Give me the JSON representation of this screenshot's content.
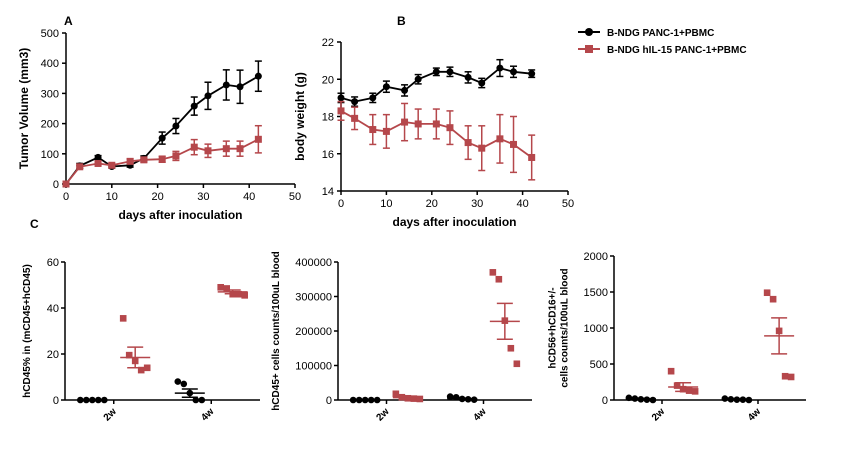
{
  "panels": {
    "a": "A",
    "b": "B",
    "c": "C"
  },
  "legend": {
    "items": [
      {
        "label": "B-NDG PANC-1+PBMC",
        "color": "#000000",
        "marker": "circle"
      },
      {
        "label": "B-NDG hIL-15 PANC-1+PBMC",
        "color": "#b5474b",
        "marker": "square"
      }
    ]
  },
  "chart_data": [
    {
      "id": "A",
      "type": "line",
      "xlabel": "days after inoculation",
      "ylabel": "Tumor Volume (mm3)",
      "xlim": [
        0,
        50
      ],
      "ylim": [
        0,
        500
      ],
      "xticks": [
        0,
        10,
        20,
        30,
        40,
        50
      ],
      "yticks": [
        0,
        100,
        200,
        300,
        400,
        500
      ],
      "x": [
        0,
        3,
        7,
        10,
        14,
        17,
        21,
        24,
        28,
        31,
        35,
        38,
        42
      ],
      "series": [
        {
          "name": "B-NDG PANC-1+PBMC",
          "color": "#000000",
          "marker": "circle",
          "values": [
            0,
            60,
            88,
            58,
            62,
            85,
            152,
            192,
            258,
            292,
            328,
            322,
            357
          ],
          "errors": [
            0,
            8,
            6,
            5,
            6,
            8,
            20,
            25,
            30,
            45,
            50,
            55,
            50
          ]
        },
        {
          "name": "B-NDG hIL-15 PANC-1+PBMC",
          "color": "#b5474b",
          "marker": "square",
          "values": [
            0,
            57,
            68,
            62,
            75,
            80,
            82,
            93,
            122,
            110,
            117,
            117,
            148
          ],
          "errors": [
            0,
            5,
            5,
            5,
            8,
            8,
            10,
            15,
            25,
            22,
            25,
            25,
            45
          ]
        }
      ]
    },
    {
      "id": "B",
      "type": "line",
      "xlabel": "days after inoculation",
      "ylabel": "body weight (g)",
      "xlim": [
        0,
        50
      ],
      "ylim": [
        14,
        22
      ],
      "xticks": [
        0,
        10,
        20,
        30,
        40,
        50
      ],
      "yticks": [
        14,
        16,
        18,
        20,
        22
      ],
      "x": [
        0,
        3,
        7,
        10,
        14,
        17,
        21,
        24,
        28,
        31,
        35,
        38,
        42
      ],
      "series": [
        {
          "name": "B-NDG PANC-1+PBMC",
          "color": "#000000",
          "marker": "circle",
          "values": [
            19.0,
            18.8,
            19.0,
            19.6,
            19.4,
            20.0,
            20.4,
            20.4,
            20.1,
            19.8,
            20.6,
            20.4,
            20.3
          ],
          "errors": [
            0.25,
            0.25,
            0.25,
            0.3,
            0.3,
            0.25,
            0.2,
            0.25,
            0.3,
            0.25,
            0.45,
            0.3,
            0.2
          ]
        },
        {
          "name": "B-NDG hIL-15 PANC-1+PBMC",
          "color": "#b5474b",
          "marker": "square",
          "values": [
            18.3,
            17.9,
            17.3,
            17.2,
            17.7,
            17.6,
            17.6,
            17.4,
            16.6,
            16.3,
            16.8,
            16.5,
            15.8
          ],
          "errors": [
            0.5,
            0.6,
            0.8,
            0.9,
            1.0,
            0.8,
            0.8,
            0.9,
            0.9,
            1.2,
            1.3,
            1.5,
            1.2
          ]
        }
      ]
    },
    {
      "id": "C1",
      "type": "scatter",
      "ylabel": "hCD45% in (mCD45+hCD45)",
      "categories": [
        "2w",
        "4w"
      ],
      "ylim": [
        0,
        60
      ],
      "yticks": [
        0,
        20,
        40,
        60
      ],
      "groups": [
        {
          "category": "2w",
          "series": "B-NDG PANC-1+PBMC",
          "color": "#000000",
          "marker": "circle",
          "points": [
            0,
            0,
            0,
            0,
            0
          ],
          "mean": 0,
          "sem": 0
        },
        {
          "category": "2w",
          "series": "B-NDG hIL-15 PANC-1+PBMC",
          "color": "#b5474b",
          "marker": "square",
          "points": [
            35.5,
            19.5,
            17,
            13,
            14
          ],
          "mean": 18.5,
          "sem": 4.5
        },
        {
          "category": "4w",
          "series": "B-NDG PANC-1+PBMC",
          "color": "#000000",
          "marker": "circle",
          "points": [
            8,
            7,
            3,
            0,
            0
          ],
          "mean": 3,
          "sem": 1.8
        },
        {
          "category": "4w",
          "series": "B-NDG hIL-15 PANC-1+PBMC",
          "color": "#b5474b",
          "marker": "square",
          "points": [
            49,
            48.5,
            46,
            46,
            45.5
          ],
          "mean": 47,
          "sem": 0.8
        }
      ]
    },
    {
      "id": "C2",
      "type": "scatter",
      "ylabel": "hCD45+ cells counts/100uL blood",
      "categories": [
        "2w",
        "4w"
      ],
      "ylim": [
        0,
        400000
      ],
      "yticks": [
        0,
        100000,
        200000,
        300000,
        400000
      ],
      "groups": [
        {
          "category": "2w",
          "series": "B-NDG PANC-1+PBMC",
          "color": "#000000",
          "marker": "circle",
          "points": [
            0,
            0,
            0,
            0,
            0
          ],
          "mean": 0,
          "sem": 0
        },
        {
          "category": "2w",
          "series": "B-NDG hIL-15 PANC-1+PBMC",
          "color": "#b5474b",
          "marker": "square",
          "points": [
            18000,
            8000,
            5000,
            4000,
            3000
          ],
          "mean": 7000,
          "sem": 2500
        },
        {
          "category": "4w",
          "series": "B-NDG PANC-1+PBMC",
          "color": "#000000",
          "marker": "circle",
          "points": [
            10000,
            8000,
            3000,
            2000,
            1000
          ],
          "mean": 4000,
          "sem": 1500
        },
        {
          "category": "4w",
          "series": "B-NDG hIL-15 PANC-1+PBMC",
          "color": "#b5474b",
          "marker": "square",
          "points": [
            370000,
            350000,
            230000,
            150000,
            105000
          ],
          "mean": 228000,
          "sem": 52000
        }
      ]
    },
    {
      "id": "C3",
      "type": "scatter",
      "ylabel": "hCD56+hCD16+/- cells counts/100uL blood",
      "ylabel_lines": [
        "hCD56+hCD16+/-",
        "cells counts/100uL blood"
      ],
      "categories": [
        "2w",
        "4w"
      ],
      "ylim": [
        0,
        2000
      ],
      "yticks": [
        0,
        500,
        1000,
        1500,
        2000
      ],
      "groups": [
        {
          "category": "2w",
          "series": "B-NDG PANC-1+PBMC",
          "color": "#000000",
          "marker": "circle",
          "points": [
            30,
            20,
            10,
            5,
            0
          ],
          "mean": 15,
          "sem": 5
        },
        {
          "category": "2w",
          "series": "B-NDG hIL-15 PANC-1+PBMC",
          "color": "#b5474b",
          "marker": "square",
          "points": [
            400,
            200,
            150,
            130,
            120
          ],
          "mean": 180,
          "sem": 60
        },
        {
          "category": "4w",
          "series": "B-NDG PANC-1+PBMC",
          "color": "#000000",
          "marker": "circle",
          "points": [
            20,
            10,
            5,
            5,
            0
          ],
          "mean": 8,
          "sem": 4
        },
        {
          "category": "4w",
          "series": "B-NDG hIL-15 PANC-1+PBMC",
          "color": "#b5474b",
          "marker": "square",
          "points": [
            1490,
            1400,
            960,
            330,
            320
          ],
          "mean": 890,
          "sem": 250
        }
      ]
    }
  ]
}
